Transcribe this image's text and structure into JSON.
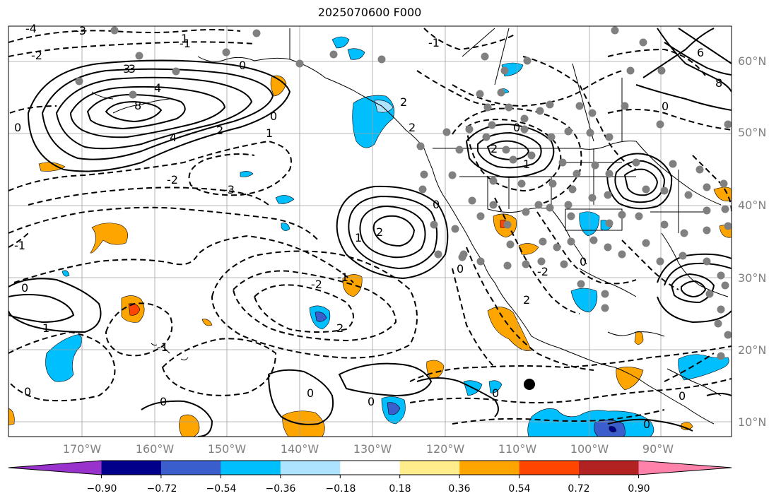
{
  "title": "2025070600 F000",
  "latitude_labels": [
    "60°N",
    "50°N",
    "40°N",
    "30°N",
    "20°N",
    "10°N"
  ],
  "longitude_labels": [
    "170°W",
    "160°W",
    "150°W",
    "140°W",
    "130°W",
    "120°W",
    "110°W",
    "100°W",
    "90°W"
  ],
  "contour_labels": [
    "-4",
    "-3",
    "-2",
    "-1",
    "0",
    "1",
    "2",
    "3",
    "4",
    "6",
    "8"
  ],
  "colorbar": {
    "tick_labels": [
      "−0.90",
      "−0.72",
      "−0.54",
      "−0.36",
      "−0.18",
      "0.18",
      "0.36",
      "0.54",
      "0.72",
      "0.90"
    ],
    "colors": [
      "#9932cc",
      "#00008b",
      "#3a5fcd",
      "#00bfff",
      "#aee3ff",
      "#ffffff",
      "#ffec8b",
      "#ffa500",
      "#ff4500",
      "#b22222",
      "#ff82ab"
    ]
  },
  "colors": {
    "grid": "#a0a0a0",
    "coastline": "#000000",
    "station_marker": "#808080",
    "highlight_marker": "#000000",
    "axis_labels": "#808080"
  }
}
